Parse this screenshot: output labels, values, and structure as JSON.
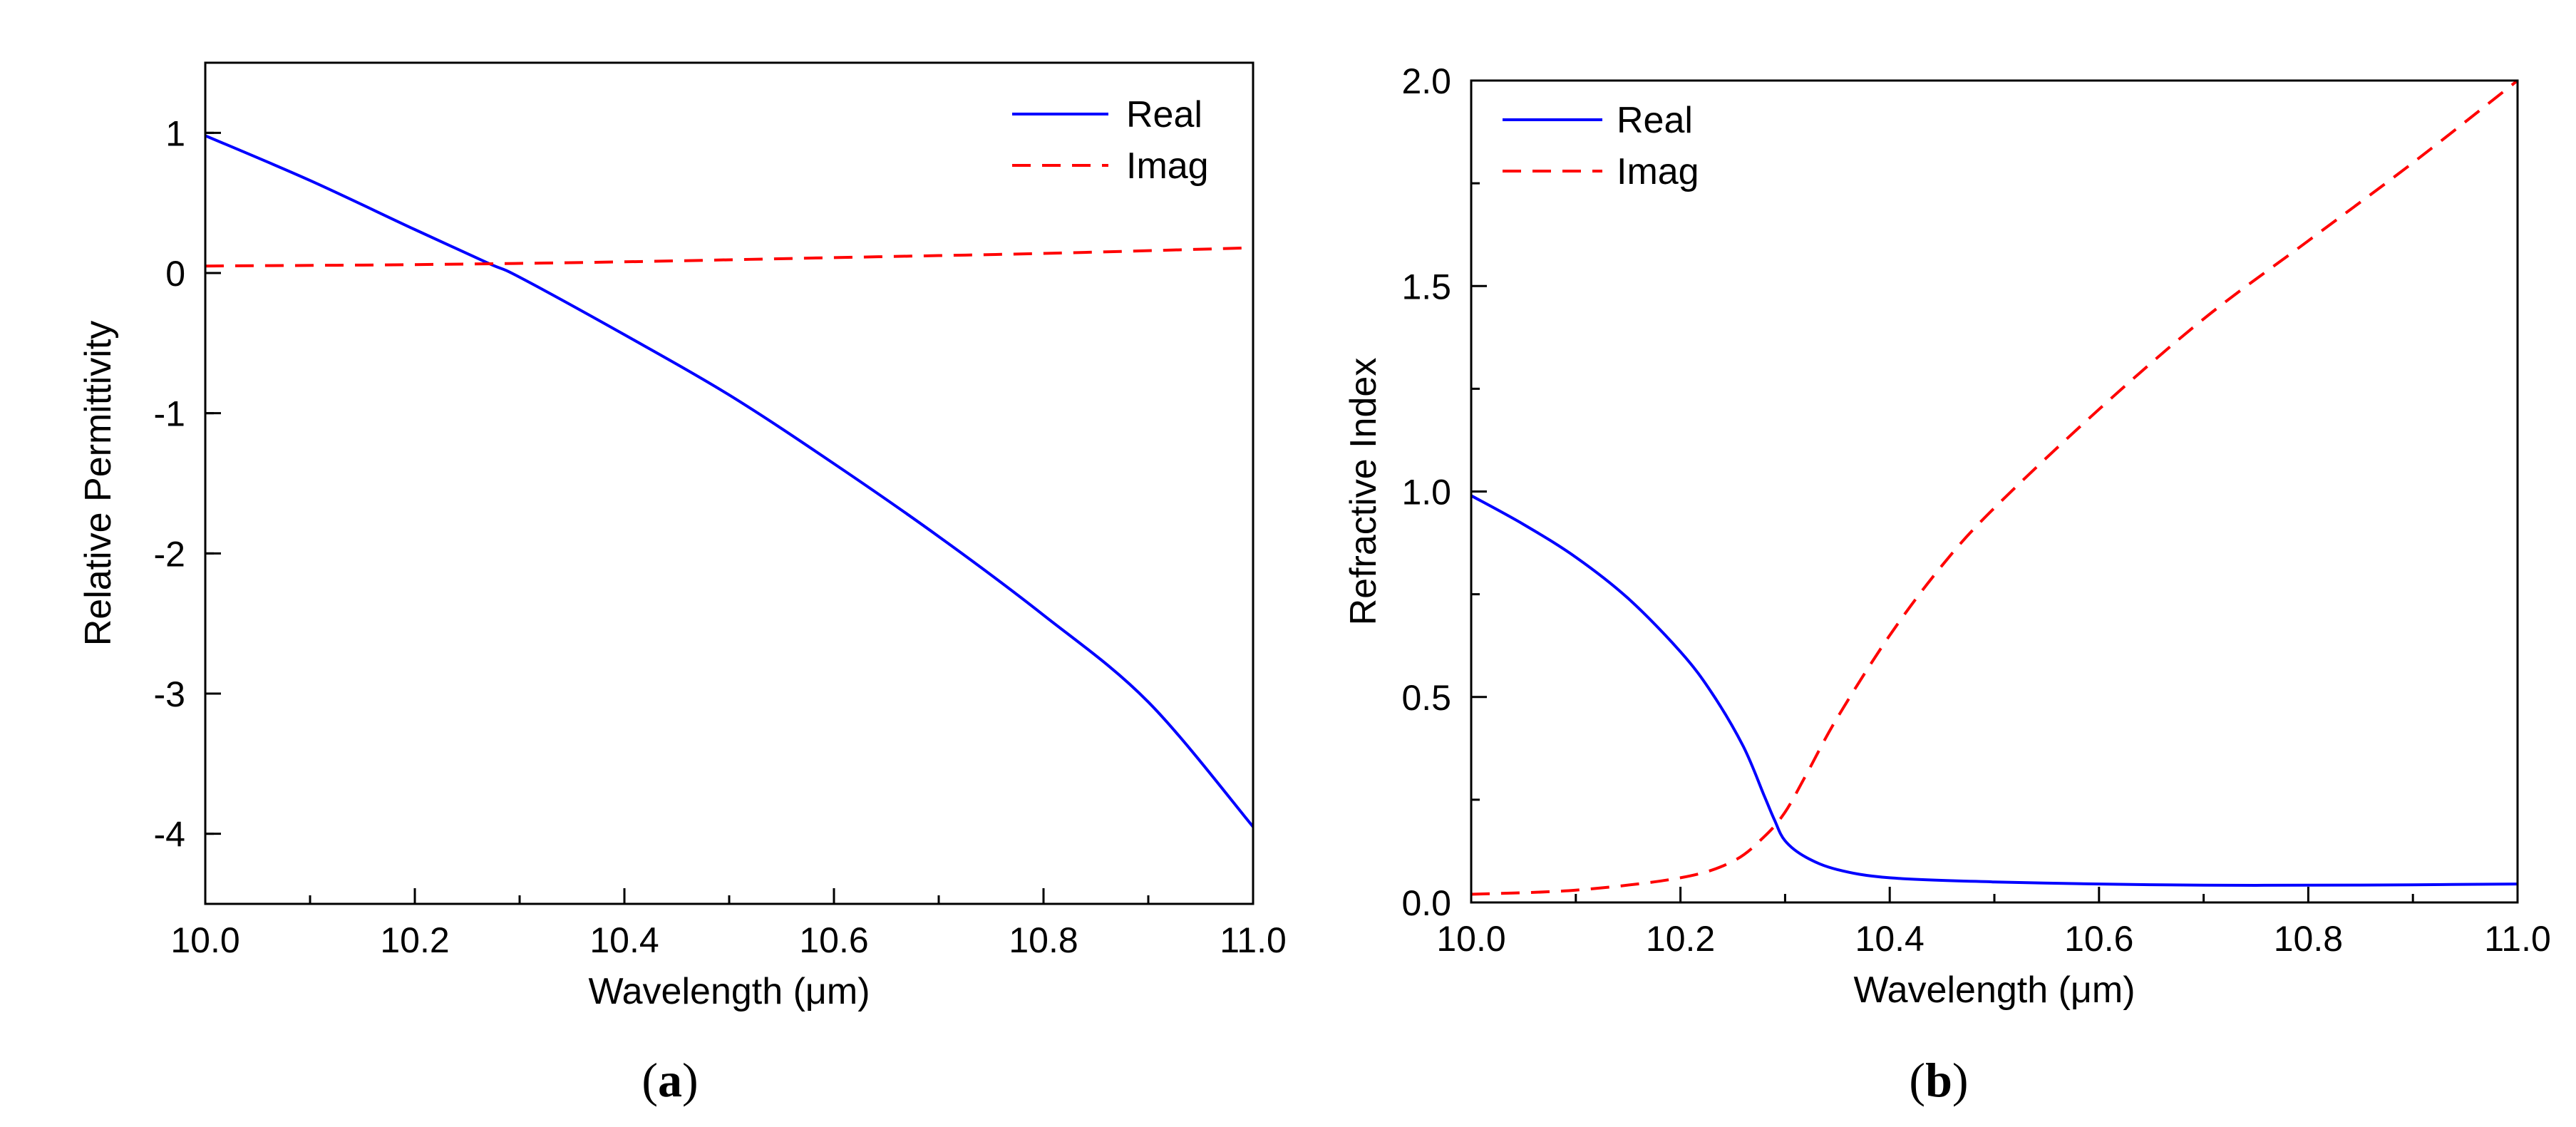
{
  "colors": {
    "real": "#0000ff",
    "imag": "#ff0000",
    "axis": "#000000"
  },
  "chart_data": [
    {
      "type": "line",
      "panel": "a",
      "panel_label": {
        "open": "(",
        "letter": "a",
        "close": ")"
      },
      "xlabel": "Wavelength (μm)",
      "ylabel": "Relative Permittivity",
      "xlim": [
        10.0,
        11.0
      ],
      "ylim": [
        -4.5,
        1.5
      ],
      "xticks": [
        10.0,
        10.2,
        10.4,
        10.6,
        10.8,
        11.0
      ],
      "xtick_labels": [
        "10.0",
        "10.2",
        "10.4",
        "10.6",
        "10.8",
        "11.0"
      ],
      "yticks": [
        1,
        0,
        -1,
        -2,
        -3,
        -4
      ],
      "ytick_labels": [
        "1",
        "0",
        "-1",
        "-2",
        "-3",
        "-4"
      ],
      "legend_position": "top-right",
      "series": [
        {
          "name": "Real",
          "style": "solid",
          "color_key": "real",
          "x": [
            10.0,
            10.1,
            10.2,
            10.27,
            10.3,
            10.4,
            10.5,
            10.6,
            10.7,
            10.8,
            10.9,
            11.0
          ],
          "y": [
            0.98,
            0.66,
            0.31,
            0.07,
            -0.03,
            -0.44,
            -0.87,
            -1.36,
            -1.88,
            -2.44,
            -3.06,
            -3.95
          ]
        },
        {
          "name": "Imag",
          "style": "dashed",
          "color_key": "imag",
          "x": [
            10.0,
            10.2,
            10.4,
            10.6,
            10.8,
            11.0
          ],
          "y": [
            0.05,
            0.06,
            0.08,
            0.11,
            0.14,
            0.18
          ]
        }
      ]
    },
    {
      "type": "line",
      "panel": "b",
      "panel_label": {
        "open": "(",
        "letter": "b",
        "close": ")"
      },
      "xlabel": "Wavelength (μm)",
      "ylabel": "Refractive Index",
      "xlim": [
        10.0,
        11.0
      ],
      "ylim": [
        0.0,
        2.0
      ],
      "xticks": [
        10.0,
        10.2,
        10.4,
        10.6,
        10.8,
        11.0
      ],
      "xtick_labels": [
        "10.0",
        "10.2",
        "10.4",
        "10.6",
        "10.8",
        "11.0"
      ],
      "yticks": [
        0.0,
        0.5,
        1.0,
        1.5,
        2.0
      ],
      "ytick_labels": [
        "0.0",
        "0.5",
        "1.0",
        "1.5",
        "2.0"
      ],
      "legend_position": "top-left",
      "series": [
        {
          "name": "Real",
          "style": "solid",
          "color_key": "real",
          "x": [
            10.0,
            10.05,
            10.1,
            10.15,
            10.2,
            10.23,
            10.26,
            10.28,
            10.29,
            10.3,
            10.32,
            10.35,
            10.4,
            10.5,
            10.6,
            10.7,
            10.8,
            10.9,
            11.0
          ],
          "y": [
            0.99,
            0.92,
            0.84,
            0.74,
            0.61,
            0.51,
            0.38,
            0.26,
            0.2,
            0.15,
            0.11,
            0.08,
            0.06,
            0.05,
            0.045,
            0.042,
            0.042,
            0.043,
            0.045
          ],
          "smooth": true
        },
        {
          "name": "Imag",
          "style": "dashed",
          "color_key": "imag",
          "x": [
            10.0,
            10.1,
            10.2,
            10.25,
            10.28,
            10.3,
            10.32,
            10.35,
            10.4,
            10.45,
            10.5,
            10.6,
            10.7,
            10.8,
            10.9,
            11.0
          ],
          "y": [
            0.02,
            0.03,
            0.06,
            0.1,
            0.16,
            0.22,
            0.31,
            0.45,
            0.65,
            0.82,
            0.96,
            1.2,
            1.42,
            1.61,
            1.8,
            2.0
          ],
          "smooth": true
        }
      ]
    }
  ]
}
